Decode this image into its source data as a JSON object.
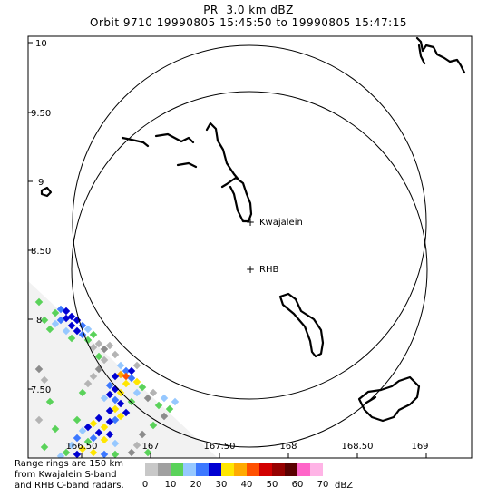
{
  "title": {
    "line1": "PR  3.0 km dBZ",
    "line2": "Orbit 9710 19990805 15:45:50 to 19990805 15:47:15"
  },
  "map": {
    "lat_labels": [
      "10",
      "9.50",
      "9",
      "8.50",
      "8",
      "7.50"
    ],
    "lon_labels": [
      "166.50",
      "167",
      "167.50",
      "168",
      "168.50",
      "169"
    ],
    "stations": [
      {
        "id": "kwajalein",
        "label": "Kwajalein"
      },
      {
        "id": "rhb",
        "label": "RHB"
      }
    ]
  },
  "footnote": {
    "line1": "Range rings are 150 km",
    "line2": "from Kwajalein S-band",
    "line3": "and RHB C-band radars."
  },
  "colorbar": {
    "ticks": [
      "0",
      "10",
      "20",
      "30",
      "40",
      "50",
      "60",
      "70"
    ],
    "unit": "dBZ",
    "colors": [
      "#c8c8c8",
      "#a0a0a0",
      "#5ad25a",
      "#96c8ff",
      "#3c78ff",
      "#0000d2",
      "#ffe600",
      "#ffaa00",
      "#ff5000",
      "#d20000",
      "#960000",
      "#5a0000",
      "#ff64c8",
      "#ffb4e6"
    ]
  }
}
